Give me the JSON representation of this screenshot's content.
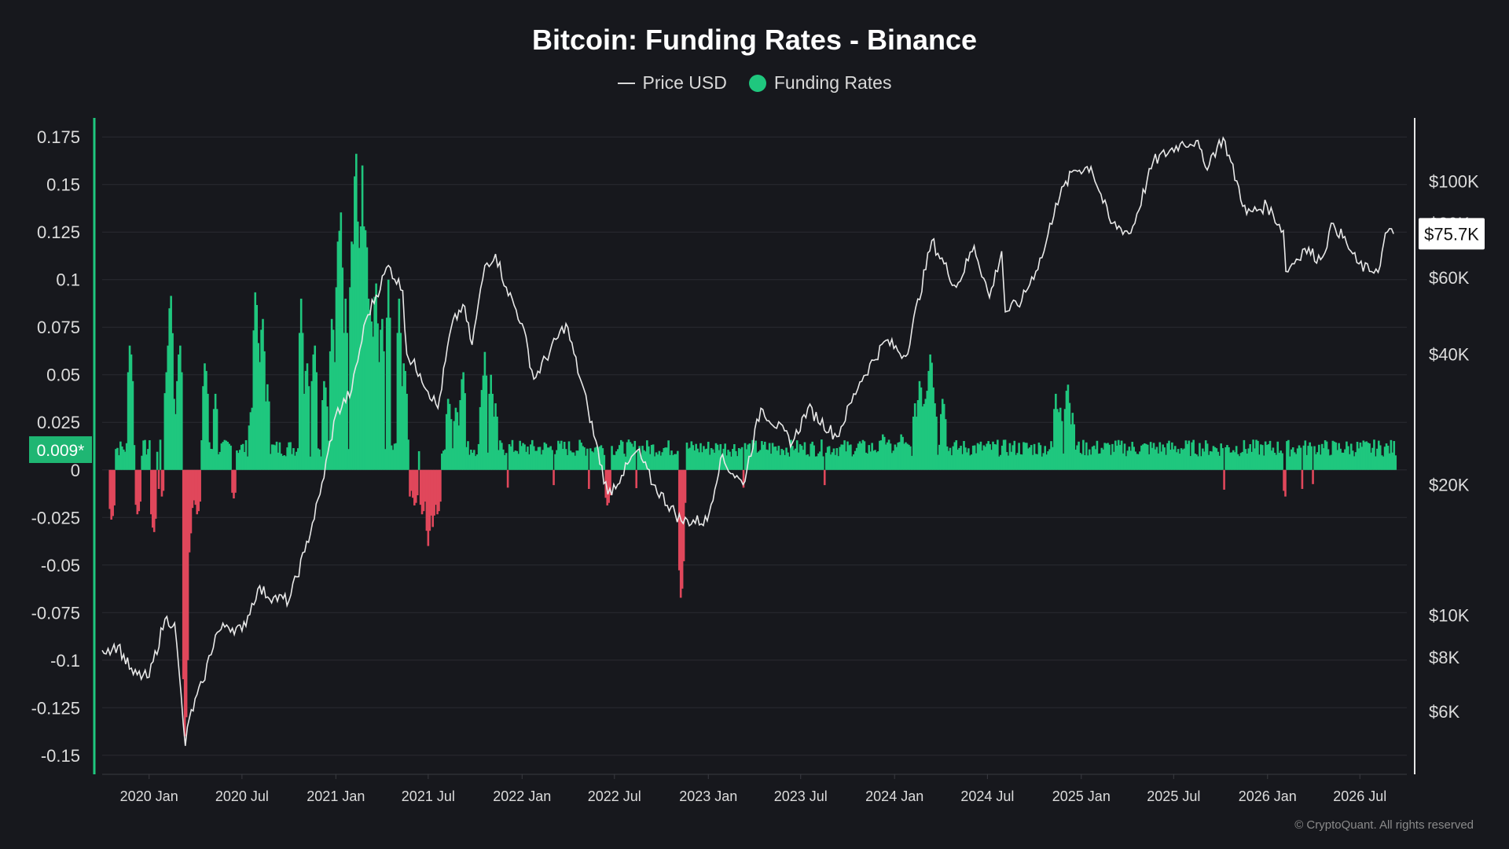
{
  "chart_data": {
    "type": "bar",
    "title": "Bitcoin: Funding Rates - Binance",
    "legend": [
      {
        "label": "Price USD",
        "marker": "line",
        "color": "#d9d9d9"
      },
      {
        "label": "Funding Rates",
        "marker": "dot",
        "color": "#1fc77e"
      }
    ],
    "legend_position": "top-center",
    "colors": {
      "positive": "#1fc77e",
      "negative": "#e0475b",
      "price": "#e8e8e8",
      "background": "#17181d",
      "grid": "#2a2b31",
      "axis_left": "#1fc77e"
    },
    "x_ticks": [
      "2020 Jan",
      "2020 Jul",
      "2021 Jan",
      "2021 Jul",
      "2022 Jan",
      "2022 Jul",
      "2023 Jan",
      "2023 Jul",
      "2024 Jan",
      "2024 Jul",
      "2025 Jan",
      "2025 Jul",
      "2026 Jan",
      "2026 Jul"
    ],
    "x_range": [
      "2019-10-01",
      "2026-10-01"
    ],
    "y_left": {
      "ticks": [
        "0.175",
        "0.15",
        "0.125",
        "0.1",
        "0.075",
        "0.05",
        "0.025",
        "0",
        "-0.025",
        "-0.05",
        "-0.075",
        "-0.1",
        "-0.125",
        "-0.15"
      ],
      "range": [
        -0.16,
        0.185
      ]
    },
    "y_right": {
      "scale": "log",
      "ticks": [
        "$100K",
        "$80K",
        "$60K",
        "$40K",
        "$20K",
        "$10K",
        "$8K",
        "$6K"
      ],
      "tick_values": [
        100000,
        80000,
        60000,
        40000,
        20000,
        10000,
        8000,
        6000
      ],
      "range": [
        4300,
        140000
      ]
    },
    "current_funding_label": "0.009*",
    "current_price_label": "$75.7K",
    "price_series": {
      "name": "Price USD",
      "points": [
        [
          "2019-10-01",
          8300
        ],
        [
          "2019-11-01",
          8500
        ],
        [
          "2019-12-01",
          7300
        ],
        [
          "2020-01-01",
          7200
        ],
        [
          "2020-02-01",
          9800
        ],
        [
          "2020-02-20",
          9600
        ],
        [
          "2020-03-12",
          5000
        ],
        [
          "2020-03-20",
          5800
        ],
        [
          "2020-04-15",
          7000
        ],
        [
          "2020-05-10",
          9000
        ],
        [
          "2020-06-01",
          9500
        ],
        [
          "2020-07-01",
          9200
        ],
        [
          "2020-08-01",
          11500
        ],
        [
          "2020-09-01",
          11000
        ],
        [
          "2020-10-01",
          10800
        ],
        [
          "2020-11-01",
          14000
        ],
        [
          "2020-12-01",
          19000
        ],
        [
          "2021-01-01",
          29000
        ],
        [
          "2021-02-01",
          33000
        ],
        [
          "2021-03-01",
          48000
        ],
        [
          "2021-04-14",
          64000
        ],
        [
          "2021-05-12",
          56000
        ],
        [
          "2021-05-20",
          40000
        ],
        [
          "2021-06-15",
          36000
        ],
        [
          "2021-07-20",
          30000
        ],
        [
          "2021-08-15",
          46000
        ],
        [
          "2021-09-07",
          52000
        ],
        [
          "2021-09-25",
          42000
        ],
        [
          "2021-10-20",
          64000
        ],
        [
          "2021-11-10",
          68000
        ],
        [
          "2021-12-01",
          57000
        ],
        [
          "2022-01-01",
          47000
        ],
        [
          "2022-01-24",
          35000
        ],
        [
          "2022-03-28",
          47000
        ],
        [
          "2022-05-10",
          30000
        ],
        [
          "2022-06-18",
          19000
        ],
        [
          "2022-07-15",
          21000
        ],
        [
          "2022-08-15",
          24000
        ],
        [
          "2022-09-15",
          20000
        ],
        [
          "2022-11-09",
          16500
        ],
        [
          "2022-12-30",
          16500
        ],
        [
          "2023-01-25",
          23000
        ],
        [
          "2023-03-10",
          20000
        ],
        [
          "2023-04-14",
          30000
        ],
        [
          "2023-06-15",
          25000
        ],
        [
          "2023-07-15",
          30000
        ],
        [
          "2023-09-10",
          25800
        ],
        [
          "2023-10-25",
          34500
        ],
        [
          "2023-12-15",
          43000
        ],
        [
          "2024-01-23",
          39500
        ],
        [
          "2024-03-14",
          73000
        ],
        [
          "2024-05-01",
          57000
        ],
        [
          "2024-06-05",
          71000
        ],
        [
          "2024-07-05",
          54000
        ],
        [
          "2024-07-29",
          69000
        ],
        [
          "2024-08-05",
          50000
        ],
        [
          "2024-09-06",
          53000
        ],
        [
          "2024-10-20",
          69000
        ],
        [
          "2024-11-12",
          89000
        ],
        [
          "2024-12-17",
          106000
        ],
        [
          "2025-01-20",
          108000
        ],
        [
          "2025-02-28",
          80000
        ],
        [
          "2025-04-08",
          76000
        ],
        [
          "2025-05-22",
          111000
        ],
        [
          "2025-07-14",
          122000
        ],
        [
          "2025-08-14",
          124000
        ],
        [
          "2025-09-01",
          108000
        ],
        [
          "2025-10-06",
          126000
        ],
        [
          "2025-11-21",
          84000
        ],
        [
          "2025-12-31",
          88000
        ],
        [
          "2026-02-01",
          77000
        ],
        [
          "2026-02-06",
          62000
        ],
        [
          "2026-03-15",
          70000
        ],
        [
          "2026-04-15",
          66000
        ],
        [
          "2026-05-10",
          80000
        ],
        [
          "2026-06-05",
          72000
        ],
        [
          "2026-06-25",
          65000
        ],
        [
          "2026-07-20",
          62000
        ],
        [
          "2026-08-10",
          64000
        ],
        [
          "2026-08-20",
          76000
        ],
        [
          "2026-09-05",
          75700
        ]
      ]
    },
    "funding_series": {
      "name": "Funding Rates",
      "baseline": 0.01,
      "spikes": [
        [
          "2019-10-20",
          -0.028
        ],
        [
          "2019-11-25",
          0.07
        ],
        [
          "2019-12-10",
          -0.025
        ],
        [
          "2020-01-10",
          -0.035
        ],
        [
          "2020-01-25",
          -0.015
        ],
        [
          "2020-02-05",
          0.055
        ],
        [
          "2020-02-12",
          0.098
        ],
        [
          "2020-02-18",
          0.04
        ],
        [
          "2020-03-01",
          0.07
        ],
        [
          "2020-03-08",
          -0.03
        ],
        [
          "2020-03-12",
          -0.15
        ],
        [
          "2020-03-18",
          -0.05
        ],
        [
          "2020-03-26",
          -0.02
        ],
        [
          "2020-04-05",
          -0.025
        ],
        [
          "2020-04-20",
          0.06
        ],
        [
          "2020-05-10",
          0.04
        ],
        [
          "2020-06-15",
          -0.015
        ],
        [
          "2020-07-20",
          0.035
        ],
        [
          "2020-07-28",
          0.1
        ],
        [
          "2020-08-10",
          0.085
        ],
        [
          "2020-08-20",
          0.045
        ],
        [
          "2020-09-05",
          -0.01
        ],
        [
          "2020-10-25",
          0.09
        ],
        [
          "2020-11-05",
          0.06
        ],
        [
          "2020-11-20",
          0.07
        ],
        [
          "2020-12-10",
          0.05
        ],
        [
          "2020-12-25",
          0.085
        ],
        [
          "2021-01-05",
          0.12
        ],
        [
          "2021-01-10",
          0.145
        ],
        [
          "2021-01-20",
          0.09
        ],
        [
          "2021-02-01",
          0.12
        ],
        [
          "2021-02-09",
          0.178
        ],
        [
          "2021-02-15",
          0.125
        ],
        [
          "2021-02-22",
          0.16
        ],
        [
          "2021-03-01",
          0.135
        ],
        [
          "2021-03-10",
          0.09
        ],
        [
          "2021-03-20",
          0.105
        ],
        [
          "2021-04-01",
          0.085
        ],
        [
          "2021-04-14",
          0.1
        ],
        [
          "2021-05-05",
          0.09
        ],
        [
          "2021-05-15",
          0.06
        ],
        [
          "2021-05-25",
          -0.015
        ],
        [
          "2021-06-05",
          -0.02
        ],
        [
          "2021-06-20",
          -0.025
        ],
        [
          "2021-07-01",
          -0.04
        ],
        [
          "2021-07-10",
          -0.03
        ],
        [
          "2021-07-20",
          -0.025
        ],
        [
          "2021-08-10",
          0.04
        ],
        [
          "2021-08-25",
          0.035
        ],
        [
          "2021-09-07",
          0.055
        ],
        [
          "2021-10-15",
          0.045
        ],
        [
          "2021-10-20",
          0.062
        ],
        [
          "2021-11-01",
          0.05
        ],
        [
          "2021-11-10",
          0.035
        ],
        [
          "2021-12-05",
          -0.01
        ],
        [
          "2022-01-22",
          -0.012
        ],
        [
          "2022-03-01",
          -0.01
        ],
        [
          "2022-05-12",
          -0.01
        ],
        [
          "2022-06-18",
          -0.02
        ],
        [
          "2022-08-10",
          -0.012
        ],
        [
          "2022-11-09",
          -0.072
        ],
        [
          "2022-11-15",
          -0.02
        ],
        [
          "2023-01-20",
          0.012
        ],
        [
          "2023-03-10",
          -0.01
        ],
        [
          "2023-06-20",
          0.012
        ],
        [
          "2023-08-17",
          -0.008
        ],
        [
          "2023-10-25",
          0.015
        ],
        [
          "2023-12-10",
          0.02
        ],
        [
          "2024-01-15",
          0.02
        ],
        [
          "2024-02-10",
          0.035
        ],
        [
          "2024-02-20",
          0.05
        ],
        [
          "2024-03-01",
          0.04
        ],
        [
          "2024-03-08",
          0.052
        ],
        [
          "2024-03-12",
          0.065
        ],
        [
          "2024-03-20",
          0.035
        ],
        [
          "2024-04-05",
          0.04
        ],
        [
          "2024-08-05",
          -0.006
        ],
        [
          "2024-09-06",
          -0.007
        ],
        [
          "2024-11-12",
          0.04
        ],
        [
          "2024-11-20",
          0.035
        ],
        [
          "2024-12-05",
          0.048
        ],
        [
          "2024-12-15",
          0.03
        ],
        [
          "2025-04-07",
          -0.008
        ],
        [
          "2025-06-22",
          -0.006
        ],
        [
          "2025-10-10",
          -0.012
        ],
        [
          "2025-11-21",
          -0.008
        ],
        [
          "2026-02-06",
          -0.015
        ],
        [
          "2026-03-10",
          -0.01
        ],
        [
          "2026-04-01",
          -0.008
        ],
        [
          "2026-05-01",
          -0.008
        ],
        [
          "2026-06-15",
          -0.006
        ]
      ]
    },
    "grid": true
  },
  "watermark": "© CryptoQuant. All rights reserved"
}
